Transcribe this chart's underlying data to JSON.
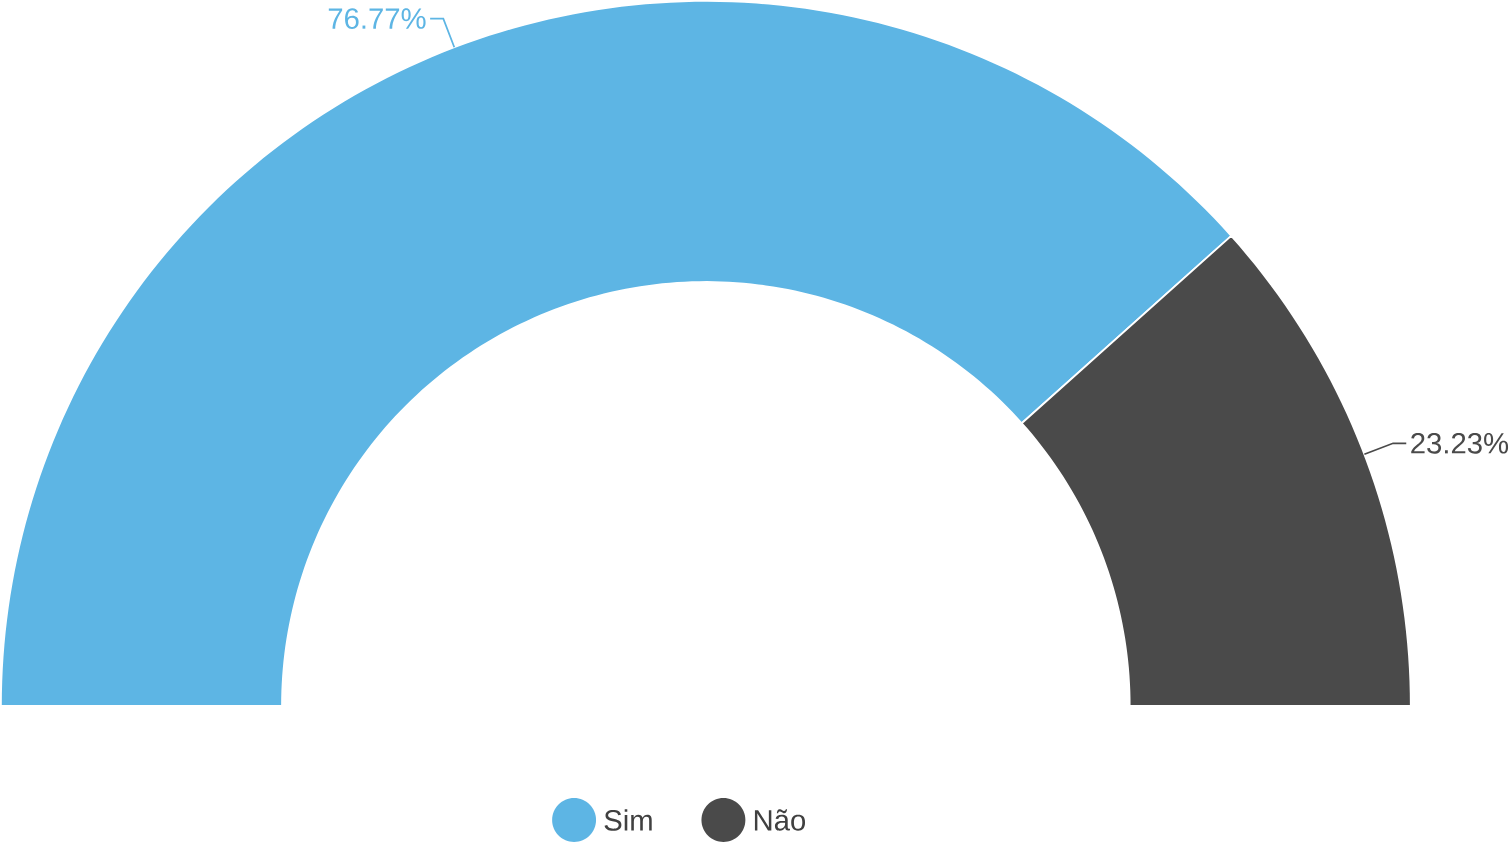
{
  "chart_data": {
    "type": "donut",
    "categories": [
      "Sim",
      "Não"
    ],
    "values": [
      76.77,
      23.23
    ],
    "colors": [
      "#5db5e4",
      "#4a4a4a"
    ],
    "value_labels": [
      "76.77%",
      "23.23%"
    ],
    "legend": "bottom"
  }
}
